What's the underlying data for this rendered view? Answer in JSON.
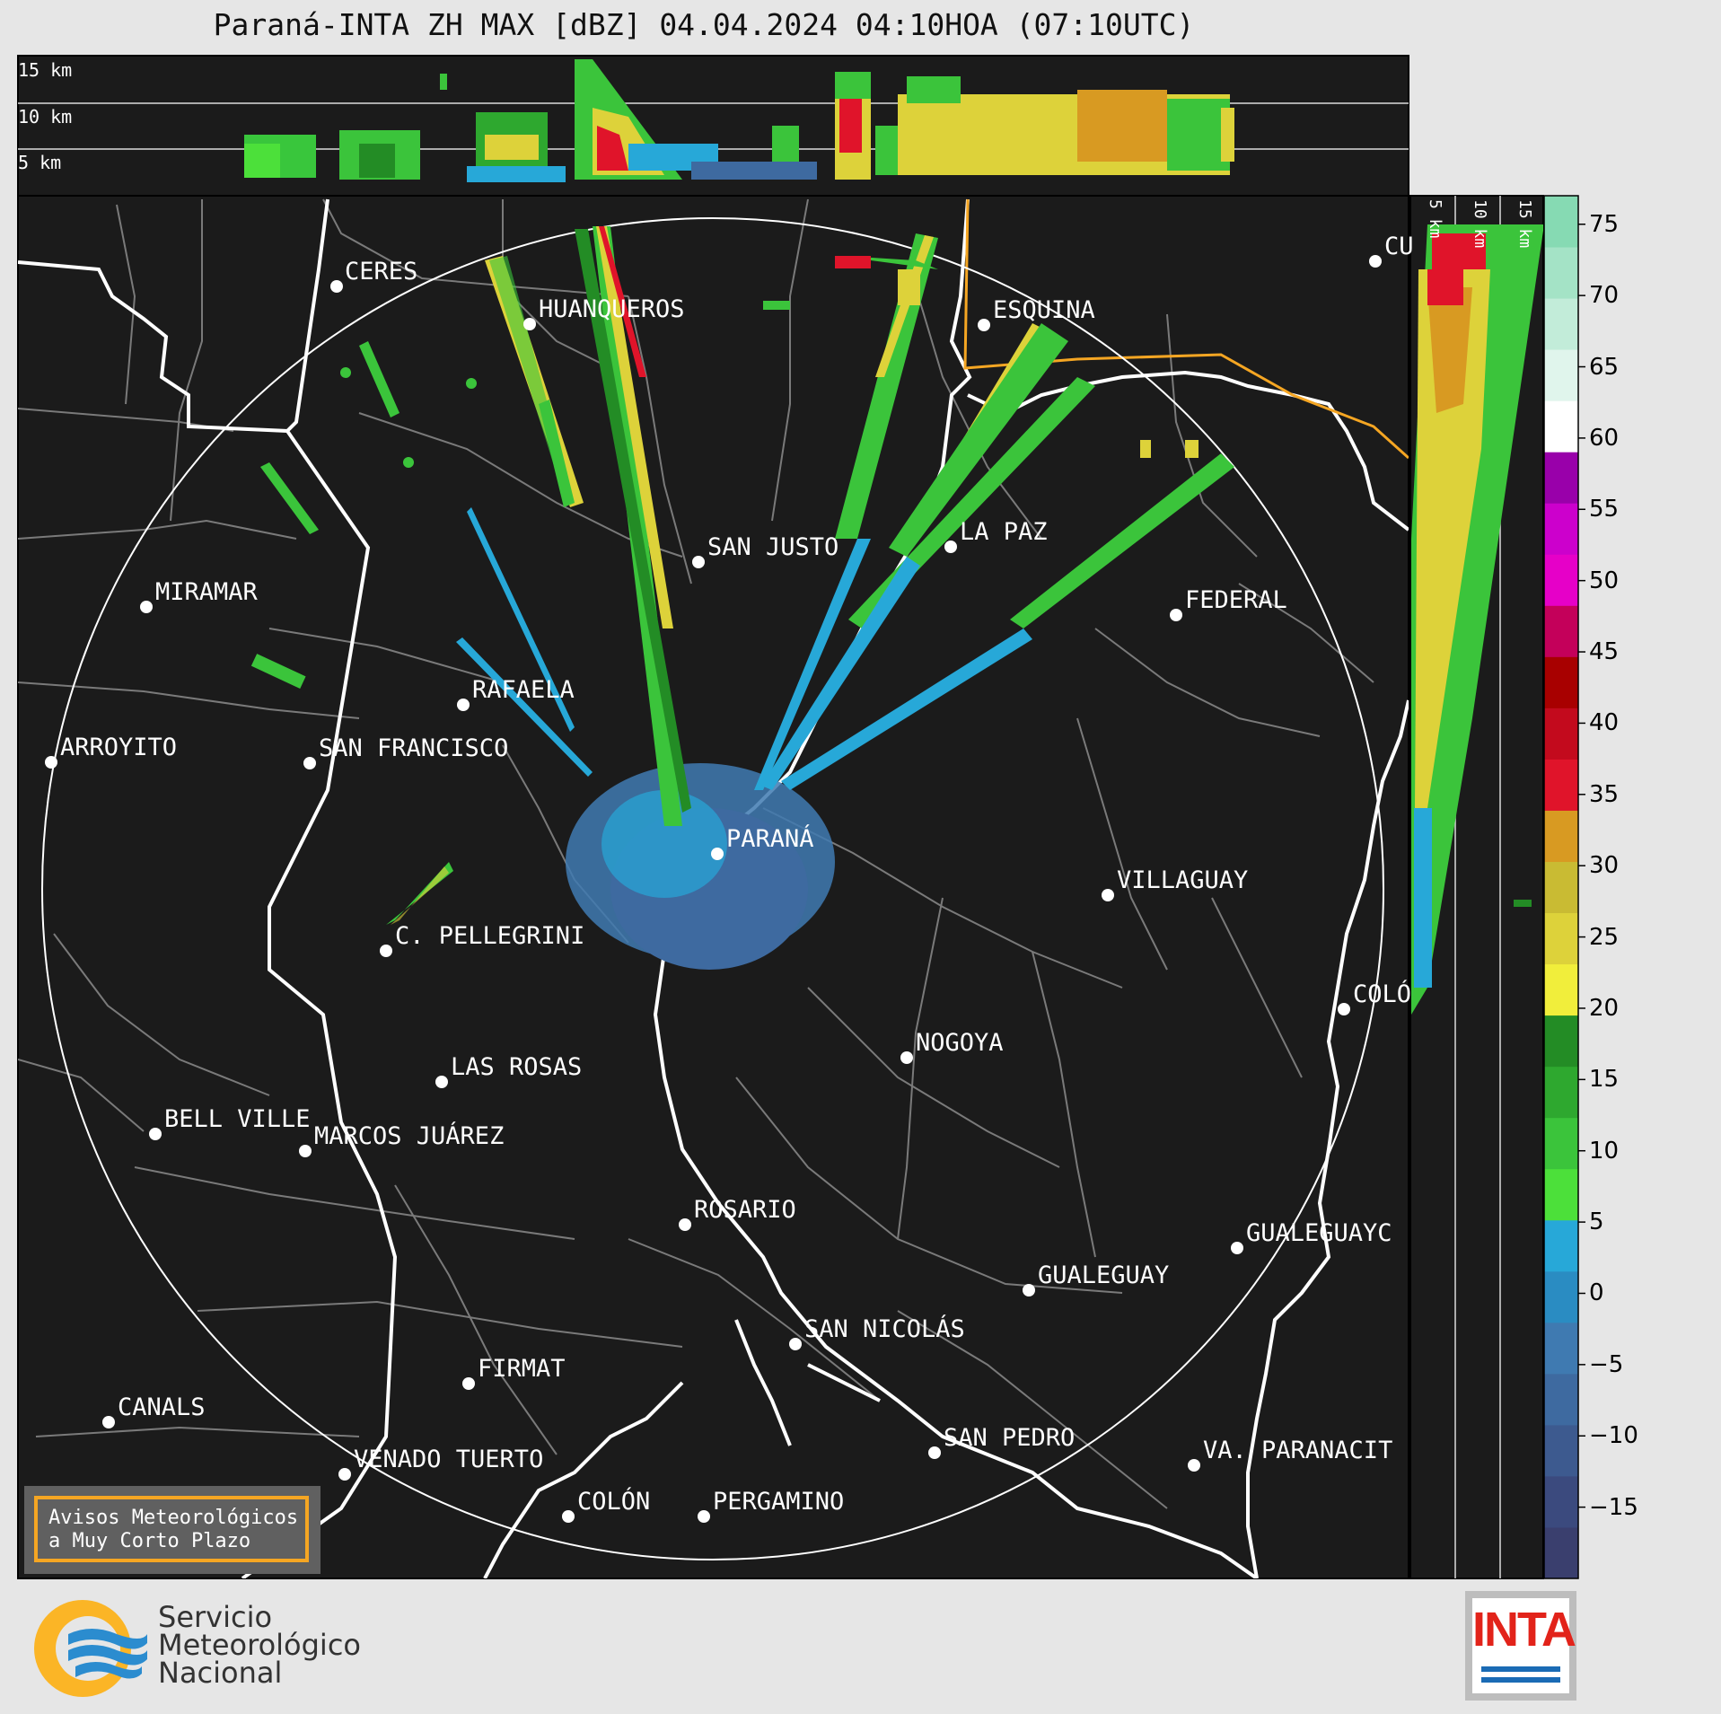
{
  "title": "Paraná-INTA ZH MAX [dBZ] 04.04.2024 04:10HOA (07:10UTC)",
  "top_panel": {
    "altitude_labels": [
      "15 km",
      "10 km",
      "5 km"
    ]
  },
  "side_panel": {
    "altitude_labels": [
      "5 km",
      "10 km",
      "15 km"
    ]
  },
  "cities": [
    {
      "name": "CERES"
    },
    {
      "name": "HUANQUEROS"
    },
    {
      "name": "ESQUINA"
    },
    {
      "name": "CU"
    },
    {
      "name": "SAN JUSTO"
    },
    {
      "name": "LA PAZ"
    },
    {
      "name": "MIRAMAR"
    },
    {
      "name": "FEDERAL"
    },
    {
      "name": "RAFAELA"
    },
    {
      "name": "ARROYITO"
    },
    {
      "name": "SAN FRANCISCO"
    },
    {
      "name": "PARANÁ"
    },
    {
      "name": "VILLAGUAY"
    },
    {
      "name": "C. PELLEGRINI"
    },
    {
      "name": "COLÓ"
    },
    {
      "name": "NOGOYA"
    },
    {
      "name": "LAS ROSAS"
    },
    {
      "name": "BELL VILLE"
    },
    {
      "name": "MARCOS JUÁREZ"
    },
    {
      "name": "ROSARIO"
    },
    {
      "name": "GUALEGUAYC"
    },
    {
      "name": "GUALEGUAY"
    },
    {
      "name": "SAN NICOLÁS"
    },
    {
      "name": "FIRMAT"
    },
    {
      "name": "CANALS"
    },
    {
      "name": "SAN PEDRO"
    },
    {
      "name": "VA. PARANACIT"
    },
    {
      "name": "VENADO TUERTO"
    },
    {
      "name": "COLÓN"
    },
    {
      "name": "PERGAMINO"
    }
  ],
  "colorbar": {
    "ticks": [
      "75",
      "70",
      "65",
      "60",
      "55",
      "50",
      "45",
      "40",
      "35",
      "30",
      "25",
      "20",
      "15",
      "10",
      "5",
      "0",
      "−5",
      "−10",
      "−15"
    ],
    "range": [
      -20,
      77
    ],
    "colors": [
      "#3a3f6e",
      "#3b4a7e",
      "#3d5a8f",
      "#3e6aa0",
      "#3f7ab1",
      "#2a8cc2",
      "#27a8d8",
      "#4ce03a",
      "#3bc43b",
      "#2ea82f",
      "#238c25",
      "#f1ee3b",
      "#ddd23a",
      "#c9bb33",
      "#d89a22",
      "#e0142a",
      "#c30a1d",
      "#a80000",
      "#c4005a",
      "#e600c8",
      "#cc00cc",
      "#9900aa",
      "#ffffff",
      "#e0f5ec",
      "#c2ecd9",
      "#a4e3c6",
      "#86dab3"
    ]
  },
  "warning_box": {
    "line1": "Avisos Meteorológicos",
    "line2": "a Muy Corto Plazo"
  },
  "logo": {
    "line1": "Servicio",
    "line2": "Meteorológico",
    "line3": "Nacional"
  },
  "inta_logo": {
    "text": "INTA"
  }
}
